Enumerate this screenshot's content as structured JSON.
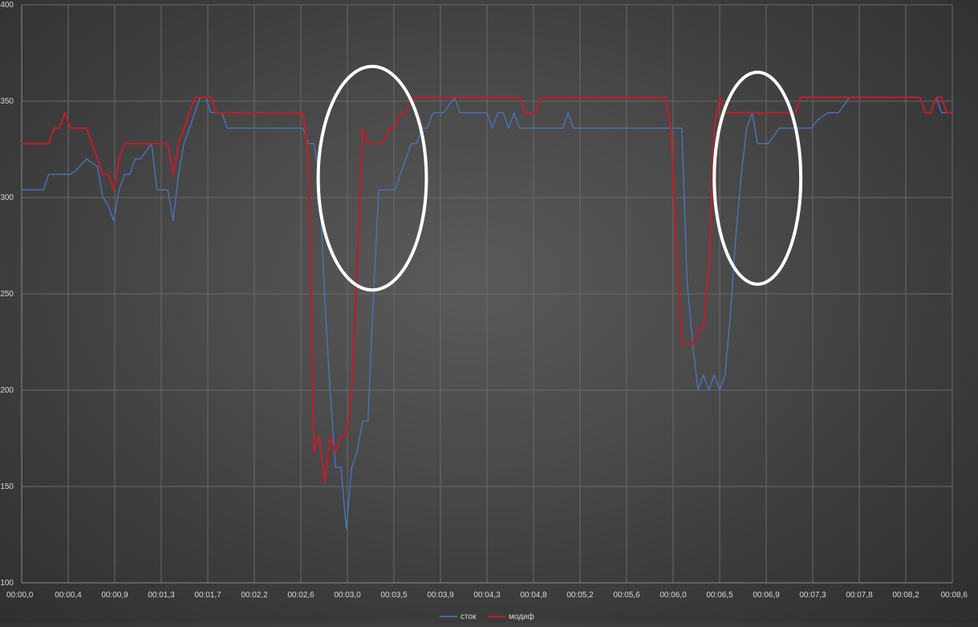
{
  "chart_data": {
    "type": "line",
    "title": "",
    "xlabel": "",
    "ylabel": "",
    "ylim": [
      100,
      400
    ],
    "y_ticks": [
      "100",
      "150",
      "200",
      "250",
      "300",
      "350",
      "400"
    ],
    "x_ticks": [
      "00:00,0",
      "00:00,4",
      "00:00,9",
      "00:01,3",
      "00:01,7",
      "00:02,2",
      "00:02,6",
      "00:03,0",
      "00:03,5",
      "00:03,9",
      "00:04,3",
      "00:04,8",
      "00:05,2",
      "00:05,6",
      "00:06,0",
      "00:06,5",
      "00:06,9",
      "00:07,3",
      "00:07,8",
      "00:08,2",
      "00:08,6"
    ],
    "x_unit": "seconds",
    "xlim": [
      0.0,
      8.6
    ],
    "grid": true,
    "legend_position": "bottom",
    "series": [
      {
        "name": "сток",
        "color": "#4a74b8",
        "points": [
          [
            0.0,
            304
          ],
          [
            0.2,
            304
          ],
          [
            0.25,
            312
          ],
          [
            0.45,
            312
          ],
          [
            0.5,
            314
          ],
          [
            0.6,
            320
          ],
          [
            0.7,
            316
          ],
          [
            0.75,
            300
          ],
          [
            0.8,
            296
          ],
          [
            0.85,
            288
          ],
          [
            0.9,
            304
          ],
          [
            0.95,
            312
          ],
          [
            1.0,
            312
          ],
          [
            1.05,
            320
          ],
          [
            1.1,
            320
          ],
          [
            1.15,
            324
          ],
          [
            1.2,
            328
          ],
          [
            1.25,
            304
          ],
          [
            1.3,
            304
          ],
          [
            1.35,
            304
          ],
          [
            1.4,
            288
          ],
          [
            1.45,
            312
          ],
          [
            1.5,
            328
          ],
          [
            1.55,
            336
          ],
          [
            1.6,
            344
          ],
          [
            1.65,
            352
          ],
          [
            1.7,
            352
          ],
          [
            1.75,
            344
          ],
          [
            1.85,
            344
          ],
          [
            1.9,
            336
          ],
          [
            2.0,
            336
          ],
          [
            2.6,
            336
          ],
          [
            2.65,
            328
          ],
          [
            2.7,
            328
          ],
          [
            2.75,
            312
          ],
          [
            2.8,
            248
          ],
          [
            2.85,
            200
          ],
          [
            2.9,
            160
          ],
          [
            2.95,
            160
          ],
          [
            3.0,
            128
          ],
          [
            3.05,
            160
          ],
          [
            3.1,
            168
          ],
          [
            3.15,
            184
          ],
          [
            3.2,
            184
          ],
          [
            3.25,
            248
          ],
          [
            3.3,
            304
          ],
          [
            3.35,
            304
          ],
          [
            3.4,
            304
          ],
          [
            3.45,
            304
          ],
          [
            3.5,
            312
          ],
          [
            3.55,
            320
          ],
          [
            3.6,
            328
          ],
          [
            3.65,
            328
          ],
          [
            3.7,
            336
          ],
          [
            3.75,
            336
          ],
          [
            3.8,
            344
          ],
          [
            3.9,
            344
          ],
          [
            4.0,
            352
          ],
          [
            4.05,
            344
          ],
          [
            4.3,
            344
          ],
          [
            4.35,
            336
          ],
          [
            4.4,
            344
          ],
          [
            4.45,
            344
          ],
          [
            4.5,
            336
          ],
          [
            4.55,
            344
          ],
          [
            4.6,
            336
          ],
          [
            5.0,
            336
          ],
          [
            5.05,
            344
          ],
          [
            5.1,
            336
          ],
          [
            5.2,
            336
          ],
          [
            6.1,
            336
          ],
          [
            6.15,
            256
          ],
          [
            6.2,
            224
          ],
          [
            6.25,
            200
          ],
          [
            6.3,
            208
          ],
          [
            6.35,
            200
          ],
          [
            6.4,
            208
          ],
          [
            6.45,
            200
          ],
          [
            6.5,
            208
          ],
          [
            6.55,
            240
          ],
          [
            6.6,
            280
          ],
          [
            6.65,
            312
          ],
          [
            6.7,
            336
          ],
          [
            6.75,
            344
          ],
          [
            6.8,
            328
          ],
          [
            6.9,
            328
          ],
          [
            7.0,
            336
          ],
          [
            7.3,
            336
          ],
          [
            7.35,
            340
          ],
          [
            7.45,
            344
          ],
          [
            7.55,
            344
          ],
          [
            7.65,
            352
          ],
          [
            8.3,
            352
          ],
          [
            8.35,
            344
          ],
          [
            8.4,
            344
          ],
          [
            8.45,
            352
          ],
          [
            8.5,
            344
          ],
          [
            8.6,
            344
          ]
        ]
      },
      {
        "name": "модиф",
        "color": "#b8202e",
        "points": [
          [
            0.0,
            328
          ],
          [
            0.25,
            328
          ],
          [
            0.3,
            336
          ],
          [
            0.35,
            336
          ],
          [
            0.4,
            344
          ],
          [
            0.45,
            336
          ],
          [
            0.6,
            336
          ],
          [
            0.65,
            328
          ],
          [
            0.7,
            320
          ],
          [
            0.75,
            312
          ],
          [
            0.8,
            312
          ],
          [
            0.85,
            304
          ],
          [
            0.9,
            320
          ],
          [
            0.95,
            328
          ],
          [
            1.35,
            328
          ],
          [
            1.4,
            312
          ],
          [
            1.45,
            328
          ],
          [
            1.5,
            336
          ],
          [
            1.55,
            344
          ],
          [
            1.6,
            352
          ],
          [
            1.75,
            352
          ],
          [
            1.8,
            344
          ],
          [
            2.6,
            344
          ],
          [
            2.65,
            320
          ],
          [
            2.7,
            168
          ],
          [
            2.75,
            176
          ],
          [
            2.8,
            152
          ],
          [
            2.85,
            176
          ],
          [
            2.9,
            168
          ],
          [
            2.95,
            176
          ],
          [
            3.0,
            176
          ],
          [
            3.05,
            200
          ],
          [
            3.1,
            264
          ],
          [
            3.15,
            336
          ],
          [
            3.2,
            328
          ],
          [
            3.25,
            328
          ],
          [
            3.3,
            328
          ],
          [
            3.35,
            330
          ],
          [
            3.4,
            336
          ],
          [
            3.45,
            336
          ],
          [
            3.5,
            344
          ],
          [
            3.55,
            344
          ],
          [
            3.6,
            352
          ],
          [
            4.6,
            352
          ],
          [
            4.65,
            344
          ],
          [
            4.75,
            344
          ],
          [
            4.8,
            352
          ],
          [
            5.95,
            352
          ],
          [
            6.0,
            336
          ],
          [
            6.05,
            272
          ],
          [
            6.1,
            224
          ],
          [
            6.2,
            224
          ],
          [
            6.25,
            232
          ],
          [
            6.3,
            232
          ],
          [
            6.35,
            264
          ],
          [
            6.4,
            336
          ],
          [
            6.45,
            352
          ],
          [
            6.5,
            344
          ],
          [
            7.15,
            344
          ],
          [
            7.2,
            352
          ],
          [
            8.3,
            352
          ],
          [
            8.35,
            344
          ],
          [
            8.4,
            344
          ],
          [
            8.45,
            352
          ],
          [
            8.5,
            352
          ],
          [
            8.55,
            344
          ],
          [
            8.6,
            344
          ]
        ]
      }
    ],
    "annotations": [
      {
        "shape": "ellipse",
        "center": [
          3.24,
          310
        ],
        "radius": [
          0.5,
          58
        ],
        "color": "#ffffff"
      },
      {
        "shape": "ellipse",
        "center": [
          6.8,
          310
        ],
        "radius": [
          0.4,
          55
        ],
        "color": "#ffffff"
      }
    ]
  }
}
